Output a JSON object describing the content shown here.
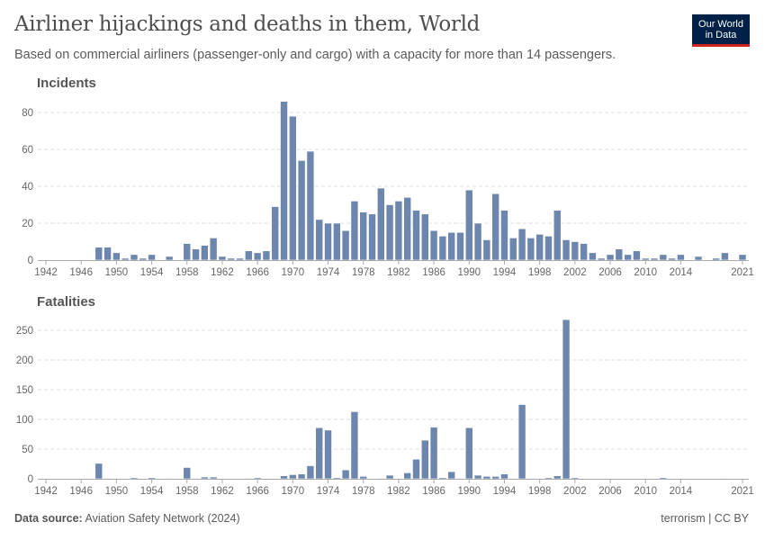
{
  "title": "Airliner hijackings and deaths in them, World",
  "subtitle": "Based on commercial airliners (passenger-only and cargo) with a capacity for more than 14 passengers.",
  "logo": {
    "line1": "Our World",
    "line2": "in Data",
    "colors": {
      "background": "#002147",
      "accent": "#ce261e"
    }
  },
  "footer": {
    "source_label": "Data source:",
    "source": "Aviation Safety Network (2024)",
    "right": "terrorism | CC BY"
  },
  "bar_color": "#6d86ae",
  "chart_data": [
    {
      "type": "bar",
      "title": "Incidents",
      "x_range": [
        1942,
        2021
      ],
      "ylim": [
        0,
        86
      ],
      "yticks": [
        0,
        20,
        40,
        60,
        80
      ],
      "xticks": [
        1942,
        1946,
        1950,
        1954,
        1958,
        1962,
        1966,
        1970,
        1974,
        1978,
        1982,
        1986,
        1990,
        1994,
        1998,
        2002,
        2006,
        2010,
        2014,
        2021
      ],
      "grid": true,
      "points": [
        [
          1948,
          7
        ],
        [
          1949,
          7
        ],
        [
          1950,
          4
        ],
        [
          1951,
          1
        ],
        [
          1952,
          3
        ],
        [
          1953,
          1
        ],
        [
          1954,
          3
        ],
        [
          1956,
          2
        ],
        [
          1958,
          9
        ],
        [
          1959,
          6
        ],
        [
          1960,
          8
        ],
        [
          1961,
          12
        ],
        [
          1962,
          2
        ],
        [
          1963,
          1
        ],
        [
          1964,
          1
        ],
        [
          1965,
          5
        ],
        [
          1966,
          4
        ],
        [
          1967,
          5
        ],
        [
          1968,
          29
        ],
        [
          1969,
          86
        ],
        [
          1970,
          78
        ],
        [
          1971,
          54
        ],
        [
          1972,
          59
        ],
        [
          1973,
          22
        ],
        [
          1974,
          20
        ],
        [
          1975,
          20
        ],
        [
          1976,
          16
        ],
        [
          1977,
          32
        ],
        [
          1978,
          26
        ],
        [
          1979,
          25
        ],
        [
          1980,
          39
        ],
        [
          1981,
          30
        ],
        [
          1982,
          32
        ],
        [
          1983,
          34
        ],
        [
          1984,
          27
        ],
        [
          1985,
          25
        ],
        [
          1986,
          16
        ],
        [
          1987,
          13
        ],
        [
          1988,
          15
        ],
        [
          1989,
          15
        ],
        [
          1990,
          38
        ],
        [
          1991,
          20
        ],
        [
          1992,
          11
        ],
        [
          1993,
          36
        ],
        [
          1994,
          27
        ],
        [
          1995,
          12
        ],
        [
          1996,
          17
        ],
        [
          1997,
          12
        ],
        [
          1998,
          14
        ],
        [
          1999,
          13
        ],
        [
          2000,
          27
        ],
        [
          2001,
          11
        ],
        [
          2002,
          10
        ],
        [
          2003,
          9
        ],
        [
          2004,
          4
        ],
        [
          2005,
          1
        ],
        [
          2006,
          3
        ],
        [
          2007,
          6
        ],
        [
          2008,
          3
        ],
        [
          2009,
          5
        ],
        [
          2010,
          1
        ],
        [
          2011,
          1
        ],
        [
          2012,
          3
        ],
        [
          2013,
          1
        ],
        [
          2014,
          3
        ],
        [
          2016,
          2
        ],
        [
          2018,
          1
        ],
        [
          2019,
          4
        ],
        [
          2021,
          3
        ]
      ]
    },
    {
      "type": "bar",
      "title": "Fatalities",
      "x_range": [
        1942,
        2021
      ],
      "ylim": [
        0,
        268
      ],
      "yticks": [
        0,
        50,
        100,
        150,
        200,
        250
      ],
      "xticks": [
        1942,
        1946,
        1950,
        1954,
        1958,
        1962,
        1966,
        1970,
        1974,
        1978,
        1982,
        1986,
        1990,
        1994,
        1998,
        2002,
        2006,
        2010,
        2014,
        2021
      ],
      "grid": true,
      "points": [
        [
          1948,
          26
        ],
        [
          1949,
          1
        ],
        [
          1952,
          2
        ],
        [
          1954,
          2
        ],
        [
          1956,
          1
        ],
        [
          1958,
          19
        ],
        [
          1959,
          1
        ],
        [
          1960,
          3
        ],
        [
          1961,
          3
        ],
        [
          1965,
          1
        ],
        [
          1966,
          2
        ],
        [
          1967,
          1
        ],
        [
          1968,
          1
        ],
        [
          1969,
          5
        ],
        [
          1970,
          7
        ],
        [
          1971,
          8
        ],
        [
          1972,
          22
        ],
        [
          1973,
          86
        ],
        [
          1974,
          82
        ],
        [
          1975,
          2
        ],
        [
          1976,
          15
        ],
        [
          1977,
          113
        ],
        [
          1978,
          4
        ],
        [
          1980,
          1
        ],
        [
          1981,
          6
        ],
        [
          1983,
          10
        ],
        [
          1984,
          33
        ],
        [
          1985,
          65
        ],
        [
          1986,
          87
        ],
        [
          1987,
          2
        ],
        [
          1988,
          12
        ],
        [
          1989,
          1
        ],
        [
          1990,
          86
        ],
        [
          1991,
          6
        ],
        [
          1992,
          4
        ],
        [
          1993,
          4
        ],
        [
          1994,
          8
        ],
        [
          1995,
          1
        ],
        [
          1996,
          125
        ],
        [
          1997,
          1
        ],
        [
          1998,
          1
        ],
        [
          1999,
          2
        ],
        [
          2000,
          5
        ],
        [
          2001,
          268
        ],
        [
          2002,
          2
        ],
        [
          2012,
          2
        ],
        [
          2019,
          1
        ]
      ]
    }
  ]
}
